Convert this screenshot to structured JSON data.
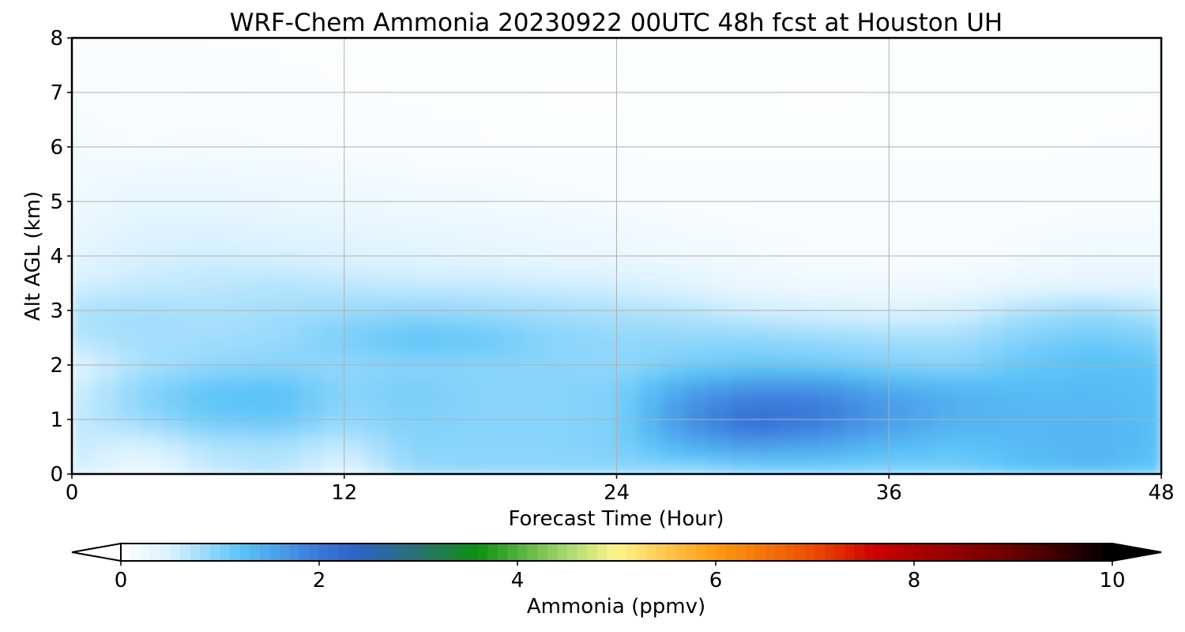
{
  "chart_data": {
    "type": "heatmap",
    "title": "WRF-Chem Ammonia  20230922 00UTC 48h fcst at Houston UH",
    "xlabel": "Forecast Time (Hour)",
    "ylabel": "Alt AGL (km)",
    "xlim": [
      0,
      48
    ],
    "ylim": [
      0,
      8
    ],
    "xticks": [
      0,
      12,
      24,
      36,
      48
    ],
    "yticks": [
      0,
      1,
      2,
      3,
      4,
      5,
      6,
      7,
      8
    ],
    "grid": true,
    "x_hours": [
      0,
      3,
      6,
      9,
      12,
      15,
      18,
      21,
      24,
      27,
      30,
      33,
      36,
      39,
      42,
      45,
      48
    ],
    "z_km": [
      0,
      0.5,
      1,
      1.5,
      2,
      2.5,
      3,
      3.5,
      4,
      5,
      6,
      7,
      8
    ],
    "values_ppmv": [
      [
        0.55,
        0.15,
        0.6,
        0.7,
        0.35,
        0.85,
        0.9,
        0.9,
        0.9,
        0.8,
        0.9,
        0.95,
        0.95,
        1.0,
        1.2,
        1.25,
        1.15
      ],
      [
        0.6,
        0.45,
        0.7,
        0.75,
        0.6,
        0.95,
        0.95,
        0.95,
        1.0,
        1.4,
        1.6,
        1.5,
        1.3,
        1.2,
        1.3,
        1.4,
        1.25
      ],
      [
        0.6,
        0.85,
        1.1,
        1.15,
        0.9,
        1.0,
        0.95,
        0.95,
        1.0,
        1.75,
        2.2,
        2.0,
        1.65,
        1.4,
        1.35,
        1.35,
        1.25
      ],
      [
        0.55,
        0.95,
        1.2,
        1.25,
        0.95,
        1.05,
        0.95,
        0.95,
        1.0,
        1.6,
        1.85,
        1.85,
        1.55,
        1.4,
        1.3,
        1.3,
        1.25
      ],
      [
        0.4,
        0.75,
        0.9,
        0.95,
        0.9,
        0.95,
        0.95,
        0.95,
        0.9,
        1.05,
        1.15,
        1.1,
        1.0,
        0.95,
        1.15,
        1.25,
        1.2
      ],
      [
        0.7,
        0.8,
        0.8,
        0.85,
        1.05,
        1.2,
        1.15,
        0.95,
        0.9,
        0.9,
        0.9,
        0.85,
        0.8,
        0.8,
        1.0,
        1.1,
        1.0
      ],
      [
        0.75,
        0.8,
        0.75,
        0.8,
        0.85,
        0.9,
        0.85,
        0.8,
        0.75,
        0.7,
        0.55,
        0.5,
        0.45,
        0.5,
        0.75,
        0.85,
        0.7
      ],
      [
        0.5,
        0.6,
        0.65,
        0.7,
        0.65,
        0.6,
        0.6,
        0.55,
        0.5,
        0.4,
        0.25,
        0.2,
        0.18,
        0.2,
        0.3,
        0.35,
        0.35
      ],
      [
        0.35,
        0.5,
        0.55,
        0.5,
        0.45,
        0.4,
        0.35,
        0.3,
        0.28,
        0.2,
        0.15,
        0.12,
        0.1,
        0.1,
        0.15,
        0.22,
        0.2
      ],
      [
        0.2,
        0.32,
        0.3,
        0.28,
        0.24,
        0.2,
        0.18,
        0.15,
        0.12,
        0.1,
        0.08,
        0.08,
        0.08,
        0.08,
        0.08,
        0.09,
        0.09
      ],
      [
        0.15,
        0.12,
        0.14,
        0.12,
        0.1,
        0.08,
        0.06,
        0.05,
        0.05,
        0.05,
        0.05,
        0.05,
        0.05,
        0.05,
        0.05,
        0.06,
        0.06
      ],
      [
        0.1,
        0.09,
        0.08,
        0.07,
        0.06,
        0.05,
        0.05,
        0.04,
        0.04,
        0.05,
        0.05,
        0.06,
        0.05,
        0.05,
        0.05,
        0.05,
        0.05
      ],
      [
        0.05,
        0.05,
        0.05,
        0.05,
        0.05,
        0.05,
        0.05,
        0.05,
        0.05,
        0.05,
        0.05,
        0.05,
        0.05,
        0.05,
        0.05,
        0.05,
        0.05
      ]
    ],
    "colorbar": {
      "label": "Ammonia  (ppmv)",
      "vmin": 0,
      "vmax": 10,
      "ticks": [
        0,
        2,
        4,
        6,
        8,
        10
      ],
      "extend": "both",
      "levels": 100,
      "color_stops": [
        [
          0.0,
          "#ffffff"
        ],
        [
          0.5,
          "#d8f1ff"
        ],
        [
          1.2,
          "#5cc4f8"
        ],
        [
          2.0,
          "#3a78da"
        ],
        [
          2.4,
          "#2c62c4"
        ],
        [
          3.0,
          "#2a7070"
        ],
        [
          3.6,
          "#0e9010"
        ],
        [
          4.5,
          "#a8d870"
        ],
        [
          5.0,
          "#fff58a"
        ],
        [
          6.0,
          "#ff9a10"
        ],
        [
          7.0,
          "#ee4a00"
        ],
        [
          7.6,
          "#cc0000"
        ],
        [
          9.0,
          "#6a0000"
        ],
        [
          10.0,
          "#000000"
        ]
      ],
      "under_color": "#ffffff",
      "over_color": "#000000"
    }
  }
}
